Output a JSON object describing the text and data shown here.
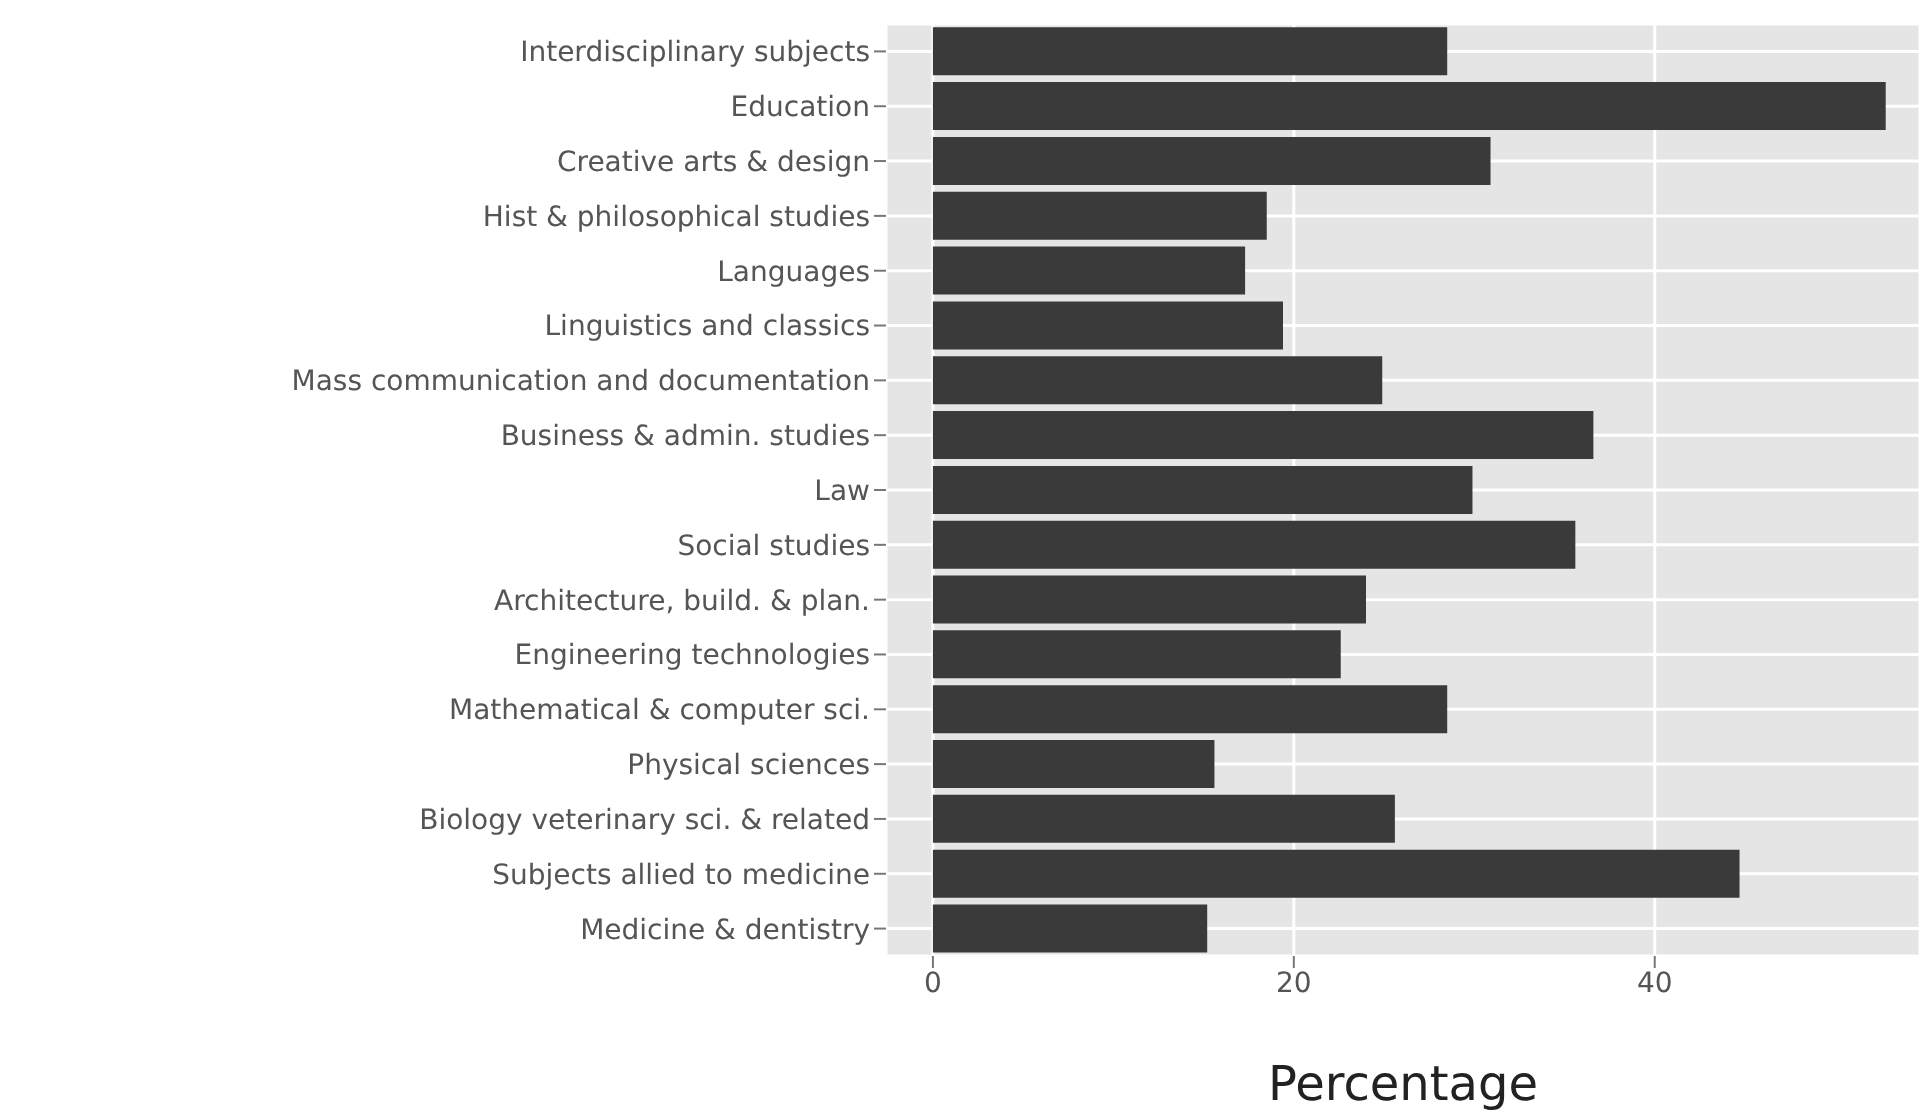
{
  "chart_data": {
    "type": "bar",
    "orientation": "horizontal",
    "xlabel": "Percentage",
    "categories": [
      "Interdisciplinary subjects",
      "Education",
      "Creative arts & design",
      "Hist & philosophical studies",
      "Languages",
      "Linguistics and classics",
      "Mass communication and documentation",
      "Business & admin. studies",
      "Law",
      "Social studies",
      "Architecture, build. & plan.",
      "Engineering technologies",
      "Mathematical & computer sci.",
      "Physical sciences",
      "Biology veterinary sci. & related",
      "Subjects allied to medicine",
      "Medicine & dentistry"
    ],
    "values": [
      28.5,
      52.8,
      30.9,
      18.5,
      17.3,
      19.4,
      24.9,
      36.6,
      29.9,
      35.6,
      24.0,
      22.6,
      28.5,
      15.6,
      25.6,
      44.7,
      15.2
    ],
    "color": "#3a3a3a",
    "xlim": [
      -2.6,
      54.7
    ],
    "xticks": [
      0,
      20,
      40
    ],
    "grid": true
  }
}
